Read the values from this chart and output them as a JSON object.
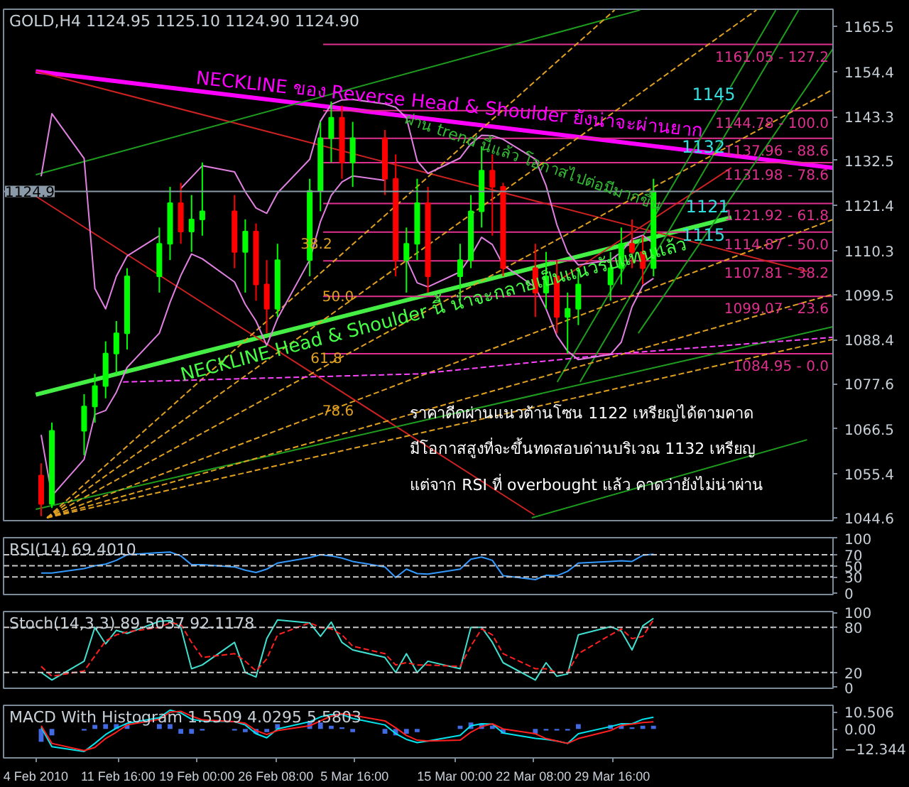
{
  "chart_data": [
    {
      "type": "candlestick",
      "title": "GOLD,H4  1124.95 1125.10 1124.90 1124.90",
      "xlim": [
        "2010-02-01T00:00",
        "2010-04-19T05:00"
      ],
      "ylim": [
        1043.9,
        1169.7
      ],
      "tick_labels": "y",
      "grid": false,
      "yticks": [
        1165.5,
        1154.4,
        1143.3,
        1132.5,
        1121.4,
        1110.3,
        1099.5,
        1088.4,
        1077.6,
        1066.5,
        1055.4,
        1044.6
      ],
      "x": [
        "2010-02-04T12:00",
        "2010-02-05T12:00",
        "2010-02-08T12:00",
        "2010-02-09T12:00",
        "2010-02-10T12:00",
        "2010-02-11T12:00",
        "2010-02-12T12:00",
        "2010-02-15T12:00",
        "2010-02-16T12:00",
        "2010-02-17T12:00",
        "2010-02-18T12:00",
        "2010-02-19T12:00",
        "2010-02-22T12:00",
        "2010-02-23T12:00",
        "2010-02-24T12:00",
        "2010-02-25T12:00",
        "2010-02-26T12:00",
        "2010-03-01T12:00",
        "2010-03-02T12:00",
        "2010-03-03T12:00",
        "2010-03-04T12:00",
        "2010-03-05T12:00",
        "2010-03-08T12:00",
        "2010-03-09T12:00",
        "2010-03-10T12:00",
        "2010-03-11T12:00",
        "2010-03-12T12:00",
        "2010-03-15T12:00",
        "2010-03-16T12:00",
        "2010-03-17T12:00",
        "2010-03-18T12:00",
        "2010-03-19T12:00",
        "2010-03-22T12:00",
        "2010-03-23T12:00",
        "2010-03-24T12:00",
        "2010-03-25T12:00",
        "2010-03-26T12:00",
        "2010-03-29T12:00",
        "2010-03-30T12:00",
        "2010-03-31T12:00",
        "2010-04-01T12:00",
        "2010-04-02T12:00"
      ],
      "ohlc": [
        [
          1055,
          1058,
          1045,
          1048
        ],
        [
          1048,
          1068,
          1047,
          1066
        ],
        [
          1066,
          1075,
          1060,
          1072
        ],
        [
          1072,
          1080,
          1068,
          1077
        ],
        [
          1077,
          1088,
          1074,
          1085
        ],
        [
          1085,
          1093,
          1080,
          1090
        ],
        [
          1090,
          1106,
          1086,
          1104
        ],
        [
          1104,
          1116,
          1100,
          1112
        ],
        [
          1112,
          1126,
          1108,
          1122
        ],
        [
          1122,
          1127,
          1112,
          1115
        ],
        [
          1115,
          1124,
          1110,
          1118
        ],
        [
          1118,
          1132,
          1114,
          1120
        ],
        [
          1120,
          1124,
          1106,
          1110
        ],
        [
          1110,
          1118,
          1100,
          1115
        ],
        [
          1115,
          1117,
          1098,
          1102
        ],
        [
          1102,
          1108,
          1090,
          1096
        ],
        [
          1096,
          1112,
          1094,
          1108
        ],
        [
          1108,
          1128,
          1104,
          1125
        ],
        [
          1125,
          1142,
          1120,
          1138
        ],
        [
          1138,
          1147,
          1132,
          1143
        ],
        [
          1143,
          1146,
          1128,
          1132
        ],
        [
          1132,
          1142,
          1126,
          1138
        ],
        [
          1138,
          1140,
          1124,
          1128
        ],
        [
          1128,
          1134,
          1104,
          1108
        ],
        [
          1108,
          1116,
          1100,
          1112
        ],
        [
          1112,
          1128,
          1108,
          1122
        ],
        [
          1122,
          1126,
          1100,
          1104
        ],
        [
          1104,
          1112,
          1098,
          1108
        ],
        [
          1108,
          1124,
          1106,
          1120
        ],
        [
          1120,
          1136,
          1116,
          1130
        ],
        [
          1130,
          1134,
          1114,
          1126
        ],
        [
          1126,
          1127,
          1104,
          1106
        ],
        [
          1106,
          1112,
          1094,
          1100
        ],
        [
          1100,
          1110,
          1096,
          1104
        ],
        [
          1104,
          1108,
          1090,
          1094
        ],
        [
          1094,
          1100,
          1085,
          1096
        ],
        [
          1096,
          1106,
          1092,
          1102
        ],
        [
          1102,
          1110,
          1098,
          1106
        ],
        [
          1106,
          1116,
          1102,
          1112
        ],
        [
          1112,
          1118,
          1106,
          1110
        ],
        [
          1110,
          1114,
          1102,
          1106
        ],
        [
          1106,
          1128,
          1104,
          1124.9
        ]
      ],
      "colors": [
        "#ff0000",
        "#00ff00",
        "#00ff00",
        "#00ff00",
        "#00ff00",
        "#00ff00",
        "#00ff00",
        "#00ff00",
        "#00ff00",
        "#ff0000",
        "#00ff00",
        "#00ff00",
        "#ff0000",
        "#00ff00",
        "#ff0000",
        "#ff0000",
        "#00ff00",
        "#00ff00",
        "#00ff00",
        "#00ff00",
        "#ff0000",
        "#00ff00",
        "#ff0000",
        "#ff0000",
        "#00ff00",
        "#00ff00",
        "#ff0000",
        "#00ff00",
        "#00ff00",
        "#00ff00",
        "#ff0000",
        "#ff0000",
        "#ff0000",
        "#00ff00",
        "#ff0000",
        "#00ff00",
        "#00ff00",
        "#00ff00",
        "#00ff00",
        "#ff0000",
        "#ff0000",
        "#00ff00"
      ],
      "series": [
        {
          "type": "line",
          "color": "#ff00ff",
          "x": [
            "2010-02-04T00:00",
            "2010-04-19T05:00"
          ],
          "values": [
            1154.4,
            1130.7
          ]
        },
        {
          "type": "line",
          "color": "#44ee44",
          "x": [
            "2010-02-04T00:00",
            "2010-04-09T18:00"
          ],
          "values": [
            1074.9,
            1118.5
          ]
        },
        {
          "type": "line",
          "name": "1161.05 - 127.2",
          "color": "#e0308f",
          "x": [
            "2010-03-02T18:00",
            "2010-04-19T05:00"
          ],
          "values": [
            1161.05,
            1161.05
          ]
        },
        {
          "type": "line",
          "name": "1144.78 - 100.0",
          "color": "#e0308f",
          "x": [
            "2010-03-02T18:00",
            "2010-04-19T05:00"
          ],
          "values": [
            1144.78,
            1144.78
          ]
        },
        {
          "type": "line",
          "name": "1137.96 - 88.6",
          "color": "#e0308f",
          "x": [
            "2010-03-02T18:00",
            "2010-04-19T05:00"
          ],
          "values": [
            1137.96,
            1137.96
          ]
        },
        {
          "type": "line",
          "name": "1131.98 - 78.6",
          "color": "#e0308f",
          "x": [
            "2010-03-02T18:00",
            "2010-04-19T05:00"
          ],
          "values": [
            1131.98,
            1131.98
          ]
        },
        {
          "type": "line",
          "name": "1121.92 - 61.8",
          "color": "#e0308f",
          "x": [
            "2010-03-02T18:00",
            "2010-04-19T05:00"
          ],
          "values": [
            1121.92,
            1121.92
          ]
        },
        {
          "type": "line",
          "name": "1114.87 - 50.0",
          "color": "#e0308f",
          "x": [
            "2010-03-02T18:00",
            "2010-04-19T05:00"
          ],
          "values": [
            1114.87,
            1114.87
          ]
        },
        {
          "type": "line",
          "name": "1107.81 - 38.2",
          "color": "#e0308f",
          "x": [
            "2010-03-02T18:00",
            "2010-04-19T05:00"
          ],
          "values": [
            1107.81,
            1107.81
          ]
        },
        {
          "type": "line",
          "name": "1099.07 - 23.6",
          "color": "#e0308f",
          "x": [
            "2010-03-02T18:00",
            "2010-04-19T05:00"
          ],
          "values": [
            1099.07,
            1099.07
          ]
        },
        {
          "type": "line",
          "name": "1084.95 - 0.0",
          "color": "#e0308f",
          "x": [
            "2010-03-02T18:00",
            "2010-04-19T05:00"
          ],
          "values": [
            1084.95,
            1084.95
          ]
        },
        {
          "type": "line",
          "color": "#cc2222",
          "x": [
            "2010-02-04T00:00",
            "2010-04-16T19:00"
          ],
          "values": [
            1154.4,
            1105.2
          ]
        },
        {
          "type": "line",
          "color": "#cc2222",
          "x": [
            "2010-02-04T00:00",
            "2010-03-22T10:00"
          ],
          "values": [
            1123.7,
            1045.3
          ]
        },
        {
          "type": "line",
          "color": "#cc2222",
          "x": [
            "2010-03-24T03:00",
            "2010-04-09T18:00"
          ],
          "values": [
            1102,
            1130.7
          ]
        },
        {
          "type": "line",
          "color": "#1e9e1e",
          "x": [
            "2010-02-04T00:00",
            "2010-04-01T06:00"
          ],
          "values": [
            1129,
            1169.5
          ]
        },
        {
          "type": "line",
          "color": "#1e9e1e",
          "x": [
            "2010-02-04T00:00",
            "2010-04-19T05:00"
          ],
          "values": [
            1046.7,
            1091.6
          ]
        },
        {
          "type": "line",
          "color": "#1e9e1e",
          "x": [
            "2010-03-22T04:00",
            "2010-04-16T19:00"
          ],
          "values": [
            1044.6,
            1063.8
          ]
        },
        {
          "type": "line",
          "color": "#1e9e1e",
          "x": [
            "2010-03-24T13:00",
            "2010-04-13T21:00"
          ],
          "values": [
            1078,
            1169.5
          ]
        },
        {
          "type": "line",
          "color": "#1e9e1e",
          "x": [
            "2010-03-26T16:00",
            "2010-04-16T00:00"
          ],
          "values": [
            1078,
            1169.5
          ]
        },
        {
          "type": "line",
          "color": "#1e9e1e",
          "x": [
            "2010-04-01T02:00",
            "2010-04-19T05:00"
          ],
          "values": [
            1090,
            1160
          ]
        },
        {
          "type": "line",
          "color": "#e0a020",
          "line_style": "dashed",
          "x": [
            "2010-02-05T01:00",
            "2010-03-29T21:00"
          ],
          "values": [
            1044.6,
            1169.5
          ]
        },
        {
          "type": "line",
          "color": "#e0a020",
          "line_style": "dashed",
          "x": [
            "2010-02-05T01:00",
            "2010-04-12T02:00"
          ],
          "values": [
            1044.6,
            1169.5
          ]
        },
        {
          "type": "line",
          "color": "#e0a020",
          "line_style": "dashed",
          "x": [
            "2010-02-05T01:00",
            "2010-04-19T05:00"
          ],
          "values": [
            1044.6,
            1150
          ]
        },
        {
          "type": "line",
          "color": "#e0a020",
          "line_style": "dashed",
          "x": [
            "2010-02-05T01:00",
            "2010-04-19T05:00"
          ],
          "values": [
            1044.6,
            1118
          ]
        },
        {
          "type": "line",
          "color": "#e0a020",
          "line_style": "dashed",
          "x": [
            "2010-02-05T01:00",
            "2010-04-19T05:00"
          ],
          "values": [
            1044.6,
            1099.6
          ]
        },
        {
          "type": "line",
          "color": "#e0a020",
          "line_style": "dashed",
          "x": [
            "2010-02-05T01:00",
            "2010-04-19T05:00"
          ],
          "values": [
            1044.6,
            1088.5
          ]
        },
        {
          "type": "line",
          "color": "#ff44ff",
          "line_style": "dashed",
          "x": [
            "2010-02-12T03:00",
            "2010-03-11T14:00",
            "2010-03-30T09:00",
            "2010-04-19T05:00"
          ],
          "values": [
            1078,
            1080,
            1085,
            1089
          ]
        },
        {
          "type": "line",
          "color": "#e080e0",
          "values": [
            1128.6,
            1144,
            1133,
            1101,
            1096,
            1104,
            1109,
            1114,
            null,
            1125.6,
            1128.4,
            1131.2,
            1129.7,
            1124.8,
            1120.8,
            1119.5,
            1124.5,
            1132.8,
            1142.2,
            1146.3,
            1147.4,
            1147.5,
            1146.4,
            1145.6,
            1143,
            1132.4,
            1129.3,
            1133.1,
            1136.6,
            1138.7,
            1138.6,
            1137.7,
            1132.8,
            1126.3,
            1116.7,
            1109.9,
            1106.8,
            1108,
            1110,
            1113.1,
            1114.1,
            1112.1
          ]
        },
        {
          "type": "line",
          "color": "#e080e0",
          "values": [
            1065,
            1050,
            1059,
            1070,
            1071,
            1075.5,
            1081.6,
            1090,
            1097.6,
            1104.2,
            1109.5,
            1108.3,
            1102.6,
            1097.1,
            1093,
            1087,
            1093.6,
            1108,
            1117.5,
            1123.9,
            1127.2,
            1128.7,
            1127.6,
            null,
            1108.3,
            1102.4,
            1101.4,
            1105.1,
            1109,
            1113.6,
            1111.8,
            1106.8,
            1101.3,
            1096,
            1089.4,
            1085.6,
            1083.5,
            1084.8,
            1087.8,
            1096.5,
            1101.7,
            1103.5
          ]
        }
      ],
      "ref_lines": [
        {
          "axis": "y",
          "value": 1124.9,
          "label": "1124.9",
          "color": "#8a9aa8"
        }
      ],
      "annotations": [
        "NECKLINE  ของ Reverse Head & Shoulder  ยังน่าจะผ่านยาก",
        {
          "text": "ผ่าน trend นี้แล้ว โอกาสไปต่อมีมากขึ้น",
          "x": "2010-03-10T10:00",
          "y": 1142.9
        },
        {
          "text": "NECKLINE  Head & Shoulder นี้ น่าจะกลายเป็นแนวรับแทนแล้ว",
          "x": "2010-02-17T13:00",
          "y": 1079.4
        },
        "1145",
        {
          "text": "1132",
          "x": "2010-04-05T03:00",
          "y": 1135.9
        },
        {
          "text": "1121",
          "x": "2010-04-05T12:00",
          "y": 1121.3
        },
        {
          "text": "1115",
          "x": "2010-04-05T03:00",
          "y": 1114.3
        },
        "38.2",
        {
          "text": "50.0",
          "x": "2010-03-02T16:00",
          "y": 1099.3
        },
        "61.8",
        {
          "text": "78.6",
          "x": "2010-03-02T16:00",
          "y": 1071.1
        },
        "ราคาดีดผ่านแนวต้านโซน 1122 เหรียญได้ตามคาด",
        "มีโอกาสสูงที่จะขึ้นทดสอบด่านบริเวณ 1132 เหรียญ",
        "แต่จาก RSI ที่ overbought แล้ว คาดว่ายังไม่น่าผ่าน"
      ]
    },
    {
      "type": "line",
      "title": "RSI(14) 69.4010",
      "xlim": [
        "2010-02-01T00:00",
        "2010-04-19T05:00"
      ],
      "ylim": [
        -2,
        101
      ],
      "yticks": [
        100,
        70,
        50,
        30,
        0
      ],
      "tick_labels": "y",
      "grid": false,
      "x": [
        "2010-02-04T12:00",
        "2010-02-05T12:00",
        "2010-02-08T12:00",
        "2010-02-09T12:00",
        "2010-02-10T12:00",
        "2010-02-11T12:00",
        "2010-02-12T12:00",
        "2010-02-15T12:00",
        "2010-02-16T12:00",
        "2010-02-17T12:00",
        "2010-02-18T12:00",
        "2010-02-19T12:00",
        "2010-02-22T12:00",
        "2010-02-23T12:00",
        "2010-02-24T12:00",
        "2010-02-25T12:00",
        "2010-02-26T12:00",
        "2010-03-01T12:00",
        "2010-03-02T12:00",
        "2010-03-03T12:00",
        "2010-03-04T12:00",
        "2010-03-05T12:00",
        "2010-03-08T12:00",
        "2010-03-09T12:00",
        "2010-03-10T12:00",
        "2010-03-11T12:00",
        "2010-03-12T12:00",
        "2010-03-15T12:00",
        "2010-03-16T12:00",
        "2010-03-17T12:00",
        "2010-03-18T12:00",
        "2010-03-19T12:00",
        "2010-03-22T12:00",
        "2010-03-23T12:00",
        "2010-03-24T12:00",
        "2010-03-25T12:00",
        "2010-03-26T12:00",
        "2010-03-29T12:00",
        "2010-03-30T12:00",
        "2010-03-31T12:00",
        "2010-04-01T12:00",
        "2010-04-02T12:00"
      ],
      "series": [
        {
          "color": "#3399ff",
          "values": [
            37,
            37,
            45,
            50,
            53,
            60,
            70,
            74,
            75,
            68,
            52,
            52,
            48,
            42,
            38,
            44,
            55,
            65,
            70,
            68,
            64,
            58,
            48,
            29,
            44,
            36,
            35,
            44,
            62,
            66,
            60,
            32,
            25,
            33,
            32,
            40,
            55,
            58,
            59,
            58,
            69,
            71
          ]
        }
      ],
      "ref_lines": [
        {
          "axis": "y",
          "value": 70,
          "color": "#c8c8c8",
          "line_style": "dashed"
        },
        {
          "axis": "y",
          "value": 50,
          "color": "#c8c8c8",
          "line_style": "dashed"
        },
        {
          "axis": "y",
          "value": 30,
          "color": "#c8c8c8",
          "line_style": "dashed"
        }
      ]
    },
    {
      "type": "line",
      "title": "Stoch(14,3,3) 89.5037 92.1178",
      "xlim": [
        "2010-02-01T00:00",
        "2010-04-19T05:00"
      ],
      "ylim": [
        -1,
        101
      ],
      "yticks": [
        100,
        80,
        20,
        0
      ],
      "tick_labels": "y",
      "grid": false,
      "x": [
        "2010-02-04T12:00",
        "2010-02-05T12:00",
        "2010-02-08T12:00",
        "2010-02-09T12:00",
        "2010-02-10T12:00",
        "2010-02-11T12:00",
        "2010-02-12T12:00",
        "2010-02-15T12:00",
        "2010-02-16T12:00",
        "2010-02-17T12:00",
        "2010-02-18T12:00",
        "2010-02-19T12:00",
        "2010-02-22T12:00",
        "2010-02-23T12:00",
        "2010-02-24T12:00",
        "2010-02-25T12:00",
        "2010-02-26T12:00",
        "2010-03-01T12:00",
        "2010-03-02T12:00",
        "2010-03-03T12:00",
        "2010-03-04T12:00",
        "2010-03-05T12:00",
        "2010-03-08T12:00",
        "2010-03-09T12:00",
        "2010-03-10T12:00",
        "2010-03-11T12:00",
        "2010-03-12T12:00",
        "2010-03-15T12:00",
        "2010-03-16T12:00",
        "2010-03-17T12:00",
        "2010-03-18T12:00",
        "2010-03-19T12:00",
        "2010-03-22T12:00",
        "2010-03-23T12:00",
        "2010-03-24T12:00",
        "2010-03-25T12:00",
        "2010-03-26T12:00",
        "2010-03-29T12:00",
        "2010-03-30T12:00",
        "2010-03-31T12:00",
        "2010-04-01T12:00",
        "2010-04-02T12:00"
      ],
      "series": [
        {
          "color": "#40e0d0",
          "values": [
            20,
            10,
            35,
            80,
            58,
            76,
            72,
            88,
            89,
            80,
            25,
            30,
            60,
            20,
            14,
            65,
            90,
            86,
            68,
            87,
            60,
            50,
            40,
            20,
            45,
            20,
            35,
            25,
            80,
            80,
            60,
            33,
            10,
            33,
            15,
            18,
            70,
            81,
            75,
            50,
            82,
            92
          ]
        },
        {
          "color": "#ff2020",
          "line_style": "dashed",
          "values": [
            28,
            15,
            22,
            42,
            62,
            70,
            74,
            80,
            86,
            84,
            60,
            40,
            45,
            35,
            22,
            38,
            70,
            86,
            80,
            78,
            70,
            55,
            45,
            30,
            33,
            30,
            30,
            28,
            55,
            78,
            70,
            45,
            25,
            25,
            20,
            20,
            45,
            70,
            78,
            65,
            68,
            90
          ]
        }
      ],
      "ref_lines": [
        {
          "axis": "y",
          "value": 80,
          "color": "#c8c8c8",
          "line_style": "dashed"
        },
        {
          "axis": "y",
          "value": 20,
          "color": "#c8c8c8",
          "line_style": "dashed"
        }
      ]
    },
    {
      "type": "bar",
      "title": "MACD With Histogram 1.5509 4.0295 5.5803",
      "xlim": [
        "2010-02-01T00:00",
        "2010-04-19T05:00"
      ],
      "ylim": [
        -18,
        14.7
      ],
      "grid": false,
      "yticks": [
        10.506,
        {
          "value": 0,
          "label": "0.00"
        },
        -12.344
      ],
      "xticks": [
        {
          "value": "2010-02-04T00:00",
          "label": "4 Feb 2010"
        },
        {
          "value": "2010-02-11T16:00",
          "label": "11 Feb 16:00"
        },
        {
          "value": "2010-02-19T00:00",
          "label": "19 Feb 00:00"
        },
        {
          "value": "2010-02-26T08:00",
          "label": "26 Feb 08:00"
        },
        {
          "value": "2010-03-05T16:00",
          "label": "5 Mar 16:00"
        },
        {
          "value": "2010-03-15T00:00",
          "label": "15 Mar 00:00"
        },
        {
          "value": "2010-03-22T08:00",
          "label": "22 Mar 08:00"
        },
        {
          "value": "2010-03-29T16:00",
          "label": "29 Mar 16:00"
        }
      ],
      "x": [
        "2010-02-04T12:00",
        "2010-02-05T12:00",
        "2010-02-08T12:00",
        "2010-02-09T12:00",
        "2010-02-10T12:00",
        "2010-02-11T12:00",
        "2010-02-12T12:00",
        "2010-02-15T12:00",
        "2010-02-16T12:00",
        "2010-02-17T12:00",
        "2010-02-18T12:00",
        "2010-02-19T12:00",
        "2010-02-22T12:00",
        "2010-02-23T12:00",
        "2010-02-24T12:00",
        "2010-02-25T12:00",
        "2010-02-26T12:00",
        "2010-03-01T12:00",
        "2010-03-02T12:00",
        "2010-03-03T12:00",
        "2010-03-04T12:00",
        "2010-03-05T12:00",
        "2010-03-08T12:00",
        "2010-03-09T12:00",
        "2010-03-10T12:00",
        "2010-03-11T12:00",
        "2010-03-12T12:00",
        "2010-03-15T12:00",
        "2010-03-16T12:00",
        "2010-03-17T12:00",
        "2010-03-18T12:00",
        "2010-03-19T12:00",
        "2010-03-22T12:00",
        "2010-03-23T12:00",
        "2010-03-24T12:00",
        "2010-03-25T12:00",
        "2010-03-26T12:00",
        "2010-03-29T12:00",
        "2010-03-30T12:00",
        "2010-03-31T12:00",
        "2010-04-01T12:00",
        "2010-04-02T12:00"
      ],
      "series": [
        {
          "type": "bar",
          "color": "#4169e1",
          "values": [
            -8,
            -4,
            -1,
            2.5,
            3,
            3,
            3,
            3,
            3,
            -3,
            -3,
            -1,
            -1,
            -2,
            -3,
            -2,
            3,
            4,
            4,
            2,
            1,
            -2,
            -3,
            -4,
            -3,
            -2,
            0,
            2,
            4,
            3.5,
            2,
            -3,
            -3,
            -1,
            -1,
            -1,
            3,
            2.5,
            2,
            1,
            2,
            2
          ]
        },
        {
          "type": "line",
          "color": "#00e5ee",
          "values": [
            1,
            -11,
            -14,
            -9,
            -3.5,
            0.5,
            3.5,
            7,
            11.7,
            10,
            6,
            5,
            4.5,
            2.5,
            -3,
            -5.5,
            0,
            4.5,
            7.5,
            9,
            9,
            6.5,
            2.5,
            -2.9,
            -6.5,
            -8.5,
            -7.5,
            -4,
            2,
            3.2,
            3,
            -2.5,
            -5.8,
            -6.5,
            -7.5,
            -9,
            -3,
            1.5,
            3.2,
            3.2,
            6,
            7.3
          ]
        },
        {
          "type": "line",
          "color": "#ff2020",
          "values": [
            2,
            -9,
            -13.5,
            -11.5,
            -6,
            -2,
            2.5,
            6,
            10.5,
            11,
            8,
            5.6,
            4.5,
            3.5,
            -1,
            -3.5,
            -1,
            2,
            5,
            8,
            9.5,
            8.5,
            5,
            0.7,
            -4,
            -7,
            -7.5,
            -7,
            -2,
            1.5,
            3.2,
            0,
            -3,
            -6,
            -7.5,
            -9,
            -6,
            -1,
            2.2,
            3,
            4,
            4.4
          ]
        }
      ]
    }
  ]
}
